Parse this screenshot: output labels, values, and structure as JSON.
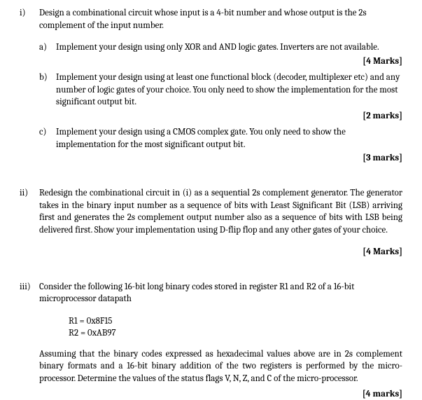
{
  "q1": {
    "marker": "i)",
    "intro": "Design a combinational circuit whose input is a 4-bit number and whose output is the 2s complement of the input number.",
    "a": {
      "marker": "a)",
      "text": "Implement your design using only XOR and AND logic gates. Inverters are not available.",
      "marks": "[4 Marks]"
    },
    "b": {
      "marker": "b)",
      "text": "Implement your design using at least one functional block (decoder, multiplexer etc) and any number of logic gates of  your choice.  You only need to show the implementation for the most significant output bit.",
      "marks": "[2 marks]"
    },
    "c": {
      "marker": "c)",
      "text": "Implement your design using a CMOS complex gate. You only need to show the implementation for the most significant output bit.",
      "marks": "[3 marks]"
    }
  },
  "q2": {
    "marker": "ii)",
    "text": "Redesign the combinational circuit in (i) as a sequential 2s complement generator.  The generator takes in the binary input number as a sequence of bits with Least Significant Bit (LSB) arriving first and generates the 2s complement output number also as a sequence of bits with LSB being delivered first.  Show your implementation using D-flip flop and any other gates of your choice.",
    "marks": "[4 Marks]"
  },
  "q3": {
    "marker": "iii)",
    "intro": "Consider the following 16-bit long binary codes stored in register R1 and R2 of a 16-bit microprocessor datapath",
    "r1": "R1 = 0x8F15",
    "r2": "R2 = 0xAB97",
    "para": "Assuming that the binary codes expressed as hexadecimal values above are in 2s complement binary formats and a 16-bit binary addition of the two registers is performed by the micro-processor.  Determine the values of the status flags V, N, Z, and C of the micro-processor.",
    "marks": "[4 marks]"
  }
}
